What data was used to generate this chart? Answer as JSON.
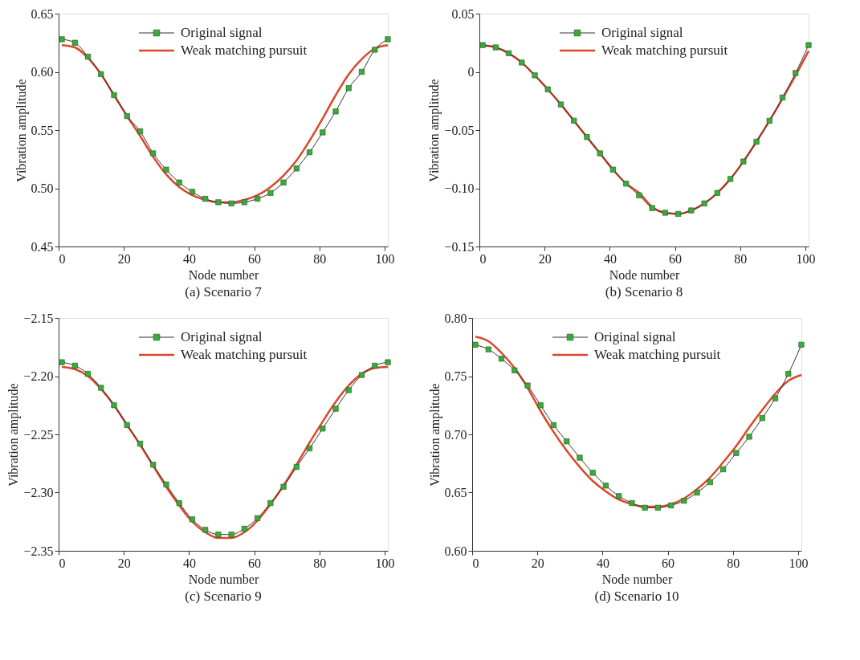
{
  "chart_data": [
    {
      "type": "line",
      "title": "(a) Scenario 7",
      "xlabel": "Node number",
      "ylabel": "Vibration amplitude",
      "xlim": [
        0,
        101
      ],
      "xticks": [
        0,
        20,
        40,
        60,
        80,
        100
      ],
      "ylim": [
        0.45,
        0.65
      ],
      "yticks": [
        {
          "value": 0.45,
          "label": "0.45"
        },
        {
          "value": 0.5,
          "label": "0.50"
        },
        {
          "value": 0.55,
          "label": "0.55"
        },
        {
          "value": 0.6,
          "label": "0.60"
        },
        {
          "value": 0.65,
          "label": "0.65"
        }
      ],
      "grid": false,
      "legend": "top",
      "x": [
        1,
        5,
        9,
        13,
        17,
        21,
        25,
        29,
        33,
        37,
        41,
        45,
        49,
        53,
        57,
        61,
        65,
        69,
        73,
        77,
        81,
        85,
        89,
        93,
        97,
        101
      ],
      "series": [
        {
          "name": "Original signal",
          "color": "#3aab3a",
          "marker": "square",
          "values": [
            0.628,
            0.625,
            0.613,
            0.598,
            0.58,
            0.562,
            0.549,
            0.53,
            0.516,
            0.505,
            0.497,
            0.491,
            0.488,
            0.487,
            0.488,
            0.491,
            0.496,
            0.505,
            0.517,
            0.531,
            0.548,
            0.566,
            0.586,
            0.6,
            0.619,
            0.628
          ]
        },
        {
          "name": "Weak matching pursuit",
          "color": "#d9482b",
          "marker": "none",
          "values": [
            0.623,
            0.621,
            0.612,
            0.598,
            0.58,
            0.562,
            0.545,
            0.527,
            0.512,
            0.501,
            0.494,
            0.49,
            0.488,
            0.488,
            0.49,
            0.494,
            0.501,
            0.511,
            0.524,
            0.541,
            0.56,
            0.58,
            0.598,
            0.611,
            0.62,
            0.623
          ]
        }
      ]
    },
    {
      "type": "line",
      "title": "(b) Scenario 8",
      "xlabel": "Node number",
      "ylabel": "Vibration amplitude",
      "xlim": [
        0,
        101
      ],
      "xticks": [
        0,
        20,
        40,
        60,
        80,
        100
      ],
      "ylim": [
        -0.15,
        0.05
      ],
      "yticks": [
        {
          "value": -0.15,
          "label": "−0.15"
        },
        {
          "value": -0.1,
          "label": "−0.10"
        },
        {
          "value": -0.05,
          "label": "−0.05"
        },
        {
          "value": 0,
          "label": "0"
        },
        {
          "value": 0.05,
          "label": "0.05"
        }
      ],
      "grid": false,
      "legend": "top",
      "x": [
        1,
        5,
        9,
        13,
        17,
        21,
        25,
        29,
        33,
        37,
        41,
        45,
        49,
        53,
        57,
        61,
        65,
        69,
        73,
        77,
        81,
        85,
        89,
        93,
        97,
        101
      ],
      "series": [
        {
          "name": "Original signal",
          "color": "#3aab3a",
          "marker": "square",
          "values": [
            0.023,
            0.021,
            0.016,
            0.008,
            -0.003,
            -0.015,
            -0.028,
            -0.042,
            -0.056,
            -0.07,
            -0.084,
            -0.096,
            -0.106,
            -0.117,
            -0.121,
            -0.122,
            -0.119,
            -0.113,
            -0.104,
            -0.092,
            -0.077,
            -0.06,
            -0.042,
            -0.022,
            -0.001,
            0.023
          ]
        },
        {
          "name": "Weak matching pursuit",
          "color": "#d9482b",
          "marker": "none",
          "values": [
            0.023,
            0.021,
            0.016,
            0.008,
            -0.003,
            -0.015,
            -0.028,
            -0.042,
            -0.056,
            -0.07,
            -0.084,
            -0.096,
            -0.104,
            -0.116,
            -0.121,
            -0.122,
            -0.119,
            -0.113,
            -0.104,
            -0.092,
            -0.077,
            -0.06,
            -0.042,
            -0.023,
            -0.003,
            0.018
          ]
        }
      ]
    },
    {
      "type": "line",
      "title": "(c) Scenario 9",
      "xlabel": "Node number",
      "ylabel": "Vibration amplitude",
      "xlim": [
        0,
        101
      ],
      "xticks": [
        0,
        20,
        40,
        60,
        80,
        100
      ],
      "ylim": [
        -2.35,
        -2.15
      ],
      "yticks": [
        {
          "value": -2.35,
          "label": "−2.35"
        },
        {
          "value": -2.3,
          "label": "−2.30"
        },
        {
          "value": -2.25,
          "label": "−2.25"
        },
        {
          "value": -2.2,
          "label": "−2.20"
        },
        {
          "value": -2.15,
          "label": "−2.15"
        }
      ],
      "grid": false,
      "legend": "top",
      "x": [
        1,
        5,
        9,
        13,
        17,
        21,
        25,
        29,
        33,
        37,
        41,
        45,
        49,
        53,
        57,
        61,
        65,
        69,
        73,
        77,
        81,
        85,
        89,
        93,
        97,
        101
      ],
      "series": [
        {
          "name": "Original signal",
          "color": "#3aab3a",
          "marker": "square",
          "values": [
            -2.188,
            -2.191,
            -2.198,
            -2.21,
            -2.225,
            -2.242,
            -2.258,
            -2.276,
            -2.293,
            -2.309,
            -2.323,
            -2.332,
            -2.336,
            -2.336,
            -2.331,
            -2.322,
            -2.309,
            -2.295,
            -2.278,
            -2.262,
            -2.245,
            -2.228,
            -2.212,
            -2.199,
            -2.191,
            -2.188
          ]
        },
        {
          "name": "Weak matching pursuit",
          "color": "#d9482b",
          "marker": "none",
          "values": [
            -2.192,
            -2.194,
            -2.2,
            -2.211,
            -2.225,
            -2.242,
            -2.259,
            -2.277,
            -2.295,
            -2.311,
            -2.325,
            -2.334,
            -2.339,
            -2.339,
            -2.334,
            -2.324,
            -2.31,
            -2.294,
            -2.276,
            -2.257,
            -2.239,
            -2.222,
            -2.208,
            -2.198,
            -2.193,
            -2.192
          ]
        }
      ]
    },
    {
      "type": "line",
      "title": "(d) Scenario 10",
      "xlabel": "Node number",
      "ylabel": "Vibration amplitude",
      "xlim": [
        0,
        101
      ],
      "xticks": [
        0,
        20,
        40,
        60,
        80,
        100
      ],
      "ylim": [
        0.6,
        0.8
      ],
      "yticks": [
        {
          "value": 0.6,
          "label": "0.60"
        },
        {
          "value": 0.65,
          "label": "0.65"
        },
        {
          "value": 0.7,
          "label": "0.70"
        },
        {
          "value": 0.75,
          "label": "0.75"
        },
        {
          "value": 0.8,
          "label": "0.80"
        }
      ],
      "grid": false,
      "legend": "top",
      "x": [
        1,
        5,
        9,
        13,
        17,
        21,
        25,
        29,
        33,
        37,
        41,
        45,
        49,
        53,
        57,
        61,
        65,
        69,
        73,
        77,
        81,
        85,
        89,
        93,
        97,
        101
      ],
      "series": [
        {
          "name": "Original signal",
          "color": "#3aab3a",
          "marker": "square",
          "values": [
            0.777,
            0.773,
            0.765,
            0.755,
            0.742,
            0.725,
            0.708,
            0.694,
            0.68,
            0.667,
            0.656,
            0.647,
            0.641,
            0.637,
            0.637,
            0.639,
            0.643,
            0.65,
            0.659,
            0.67,
            0.684,
            0.698,
            0.714,
            0.731,
            0.752,
            0.777
          ]
        },
        {
          "name": "Weak matching pursuit",
          "color": "#d9482b",
          "marker": "none",
          "values": [
            0.784,
            0.78,
            0.77,
            0.757,
            0.74,
            0.72,
            0.702,
            0.686,
            0.672,
            0.66,
            0.651,
            0.644,
            0.64,
            0.638,
            0.638,
            0.64,
            0.645,
            0.653,
            0.663,
            0.676,
            0.69,
            0.706,
            0.721,
            0.735,
            0.746,
            0.751
          ]
        }
      ]
    }
  ]
}
